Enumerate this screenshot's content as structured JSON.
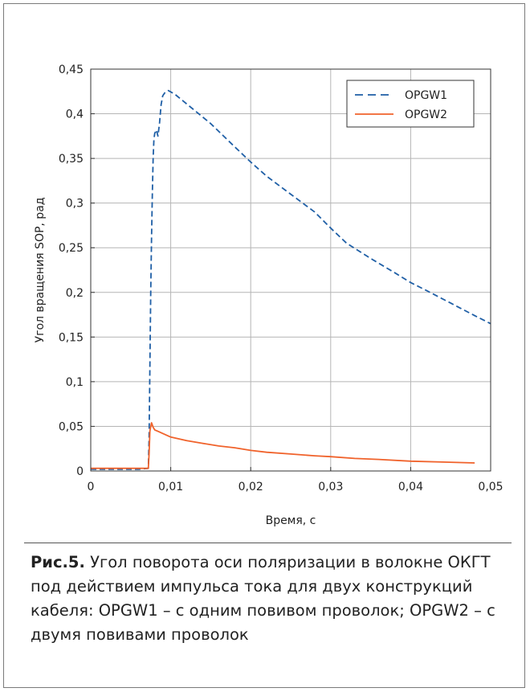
{
  "chart_data": {
    "type": "line",
    "title": "",
    "xlabel": "Время, с",
    "ylabel": "Угол вращения SOP, рад",
    "xlim": [
      0,
      0.05
    ],
    "ylim": [
      0,
      0.45
    ],
    "grid": true,
    "legend_position": "top-right",
    "x_ticks": [
      "0",
      "0,01",
      "0,02",
      "0,03",
      "0,04",
      "0,05"
    ],
    "y_ticks": [
      "0",
      "0,05",
      "0,1",
      "0,15",
      "0,2",
      "0,25",
      "0,3",
      "0,35",
      "0,4",
      "0,45"
    ],
    "series": [
      {
        "name": "OPGW1",
        "style": "dashed",
        "color": "#1f5fa6",
        "points": [
          [
            0,
            0.002
          ],
          [
            0.002,
            0.002
          ],
          [
            0.004,
            0.002
          ],
          [
            0.006,
            0.002
          ],
          [
            0.0072,
            0.003
          ],
          [
            0.0073,
            0.04
          ],
          [
            0.0074,
            0.12
          ],
          [
            0.0075,
            0.2
          ],
          [
            0.0076,
            0.26
          ],
          [
            0.0077,
            0.31
          ],
          [
            0.0078,
            0.35
          ],
          [
            0.0079,
            0.372
          ],
          [
            0.008,
            0.378
          ],
          [
            0.0082,
            0.382
          ],
          [
            0.0084,
            0.375
          ],
          [
            0.0086,
            0.39
          ],
          [
            0.0088,
            0.41
          ],
          [
            0.009,
            0.42
          ],
          [
            0.0093,
            0.424
          ],
          [
            0.0097,
            0.426
          ],
          [
            0.0105,
            0.422
          ],
          [
            0.012,
            0.411
          ],
          [
            0.015,
            0.389
          ],
          [
            0.018,
            0.363
          ],
          [
            0.02,
            0.346
          ],
          [
            0.022,
            0.33
          ],
          [
            0.025,
            0.31
          ],
          [
            0.028,
            0.29
          ],
          [
            0.03,
            0.272
          ],
          [
            0.032,
            0.255
          ],
          [
            0.035,
            0.238
          ],
          [
            0.038,
            0.222
          ],
          [
            0.04,
            0.211
          ],
          [
            0.042,
            0.202
          ],
          [
            0.045,
            0.188
          ],
          [
            0.048,
            0.174
          ],
          [
            0.05,
            0.165
          ]
        ]
      },
      {
        "name": "OPGW2",
        "style": "solid",
        "color": "#f0622b",
        "points": [
          [
            0,
            0.003
          ],
          [
            0.002,
            0.003
          ],
          [
            0.004,
            0.003
          ],
          [
            0.006,
            0.003
          ],
          [
            0.0072,
            0.003
          ],
          [
            0.0073,
            0.02
          ],
          [
            0.0074,
            0.045
          ],
          [
            0.0076,
            0.054
          ],
          [
            0.0078,
            0.049
          ],
          [
            0.008,
            0.046
          ],
          [
            0.0085,
            0.044
          ],
          [
            0.009,
            0.042
          ],
          [
            0.01,
            0.038
          ],
          [
            0.012,
            0.034
          ],
          [
            0.014,
            0.031
          ],
          [
            0.016,
            0.028
          ],
          [
            0.018,
            0.026
          ],
          [
            0.02,
            0.023
          ],
          [
            0.022,
            0.021
          ],
          [
            0.025,
            0.019
          ],
          [
            0.028,
            0.017
          ],
          [
            0.03,
            0.016
          ],
          [
            0.033,
            0.014
          ],
          [
            0.036,
            0.013
          ],
          [
            0.04,
            0.011
          ],
          [
            0.044,
            0.01
          ],
          [
            0.048,
            0.009
          ]
        ]
      }
    ]
  },
  "caption": {
    "label": "Рис.5.",
    "text": " Угол поворота оси поляризации в волокне ОКГТ под действием импульса тока для двух конструкций кабеля: OPGW1 – с одним повивом проволок; OPGW2 – с двумя повивами проволок"
  }
}
